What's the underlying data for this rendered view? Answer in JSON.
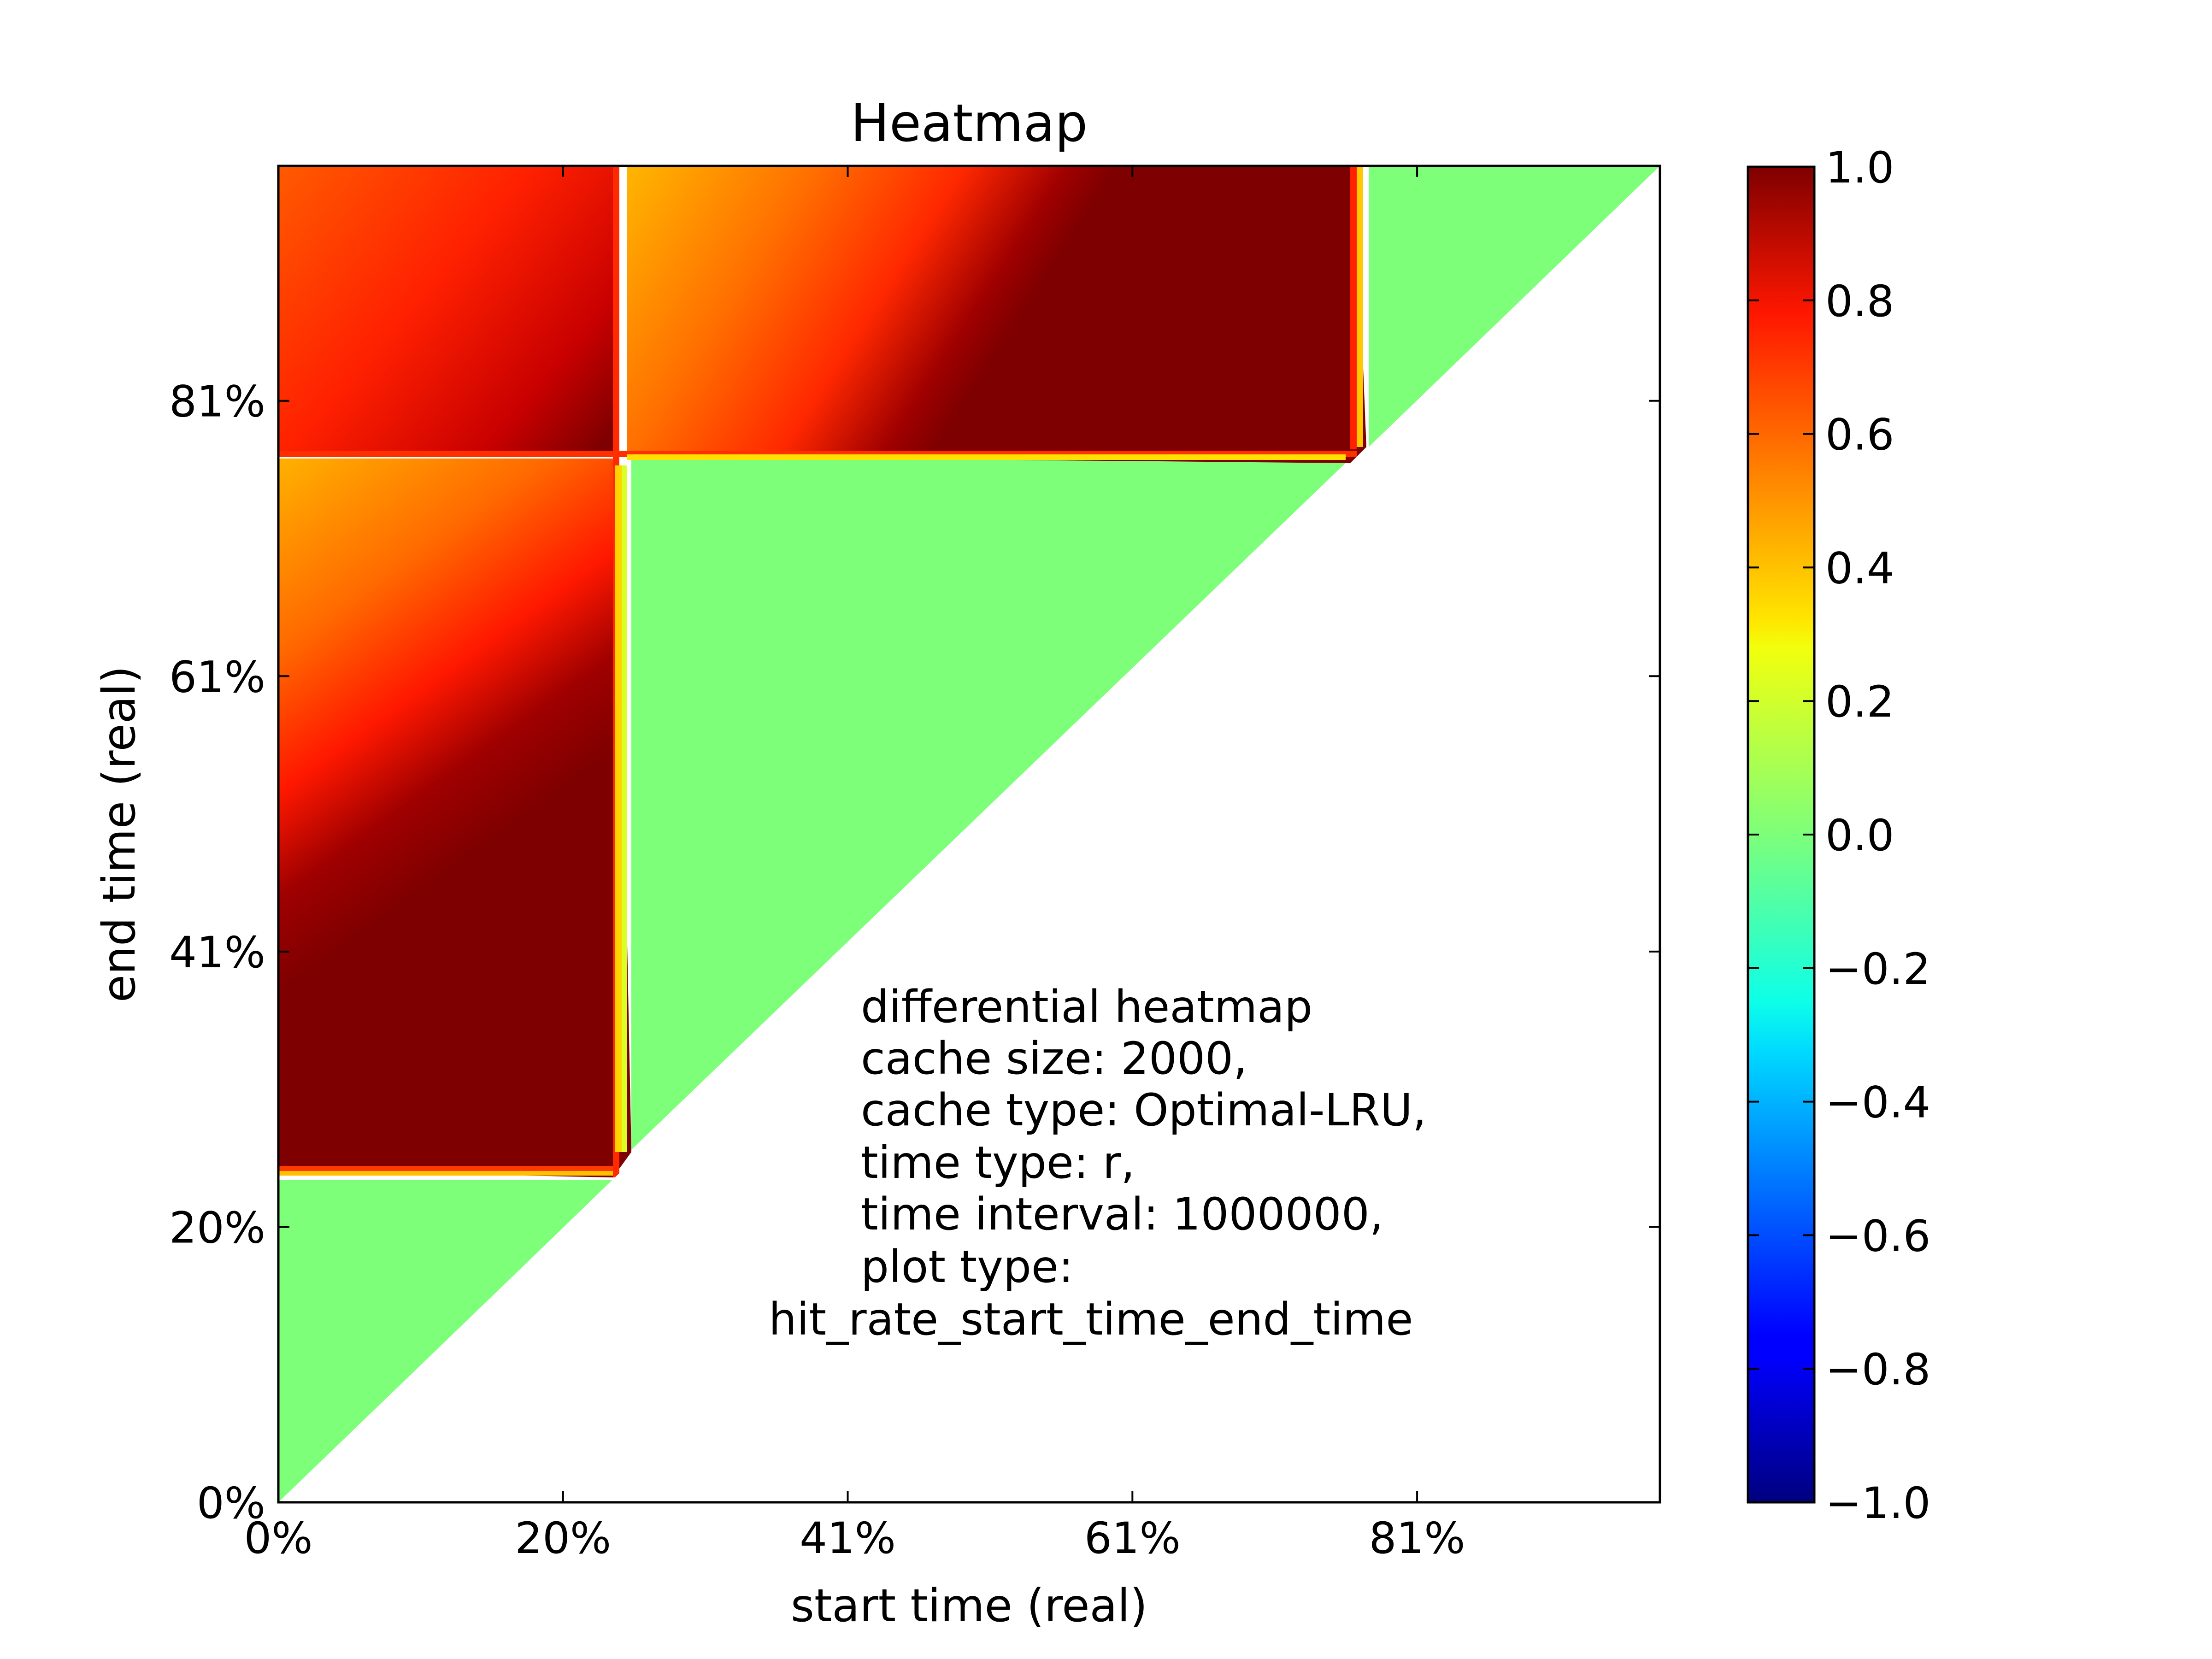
{
  "chart_data": {
    "type": "heatmap",
    "title": "Heatmap",
    "xlabel": "start time (real)",
    "ylabel": "end time (real)",
    "x_tick_labels": [
      "0%",
      "20%",
      "41%",
      "61%",
      "81%"
    ],
    "y_tick_labels": [
      "0%",
      "20%",
      "41%",
      "61%",
      "81%"
    ],
    "x_ticks_pct": [
      0,
      20.4,
      40.8,
      61.2,
      81.6
    ],
    "y_ticks_pct": [
      0,
      20.4,
      40.8,
      61.2,
      81.6
    ],
    "axis_range_pct": [
      0,
      99
    ],
    "colorbar": {
      "min": -1.0,
      "max": 1.0,
      "tick_labels": [
        "1.0",
        "0.8",
        "0.6",
        "0.4",
        "0.2",
        "0.0",
        "−0.2",
        "−0.4",
        "−0.6",
        "−0.8",
        "−1.0"
      ],
      "colormap": "jet"
    },
    "annotation": [
      "differential heatmap",
      "cache size: 2000,",
      "cache type: Optimal-LRU,",
      "time type: r,",
      "time interval: 1000000,",
      "plot type:",
      "hit_rate_start_time_end_time"
    ],
    "regions": [
      {
        "x_pct": [
          0,
          25.3
        ],
        "y_pct": [
          23.6,
          80.1
        ],
        "value_range": [
          0.5,
          1.0
        ],
        "peak": "near diagonal"
      },
      {
        "x_pct": [
          0,
          25.3
        ],
        "y_pct": [
          80.1,
          99
        ],
        "value_range": [
          0.7,
          1.0
        ]
      },
      {
        "x_pct": [
          25.3,
          78.2
        ],
        "y_pct": [
          80.1,
          99
        ],
        "value_range": [
          0.45,
          1.0
        ],
        "peak": "near diagonal"
      },
      {
        "x_pct": [
          25.3,
          78.2
        ],
        "y_pct": [
          25.3,
          80.1
        ],
        "value": 0.0
      },
      {
        "x_pct": [
          0,
          23.6
        ],
        "y_pct": [
          0,
          23.6
        ],
        "value": 0.0
      },
      {
        "x_pct": [
          78.2,
          99
        ],
        "y_pct": [
          78.2,
          99
        ],
        "value": 0.0
      }
    ]
  }
}
